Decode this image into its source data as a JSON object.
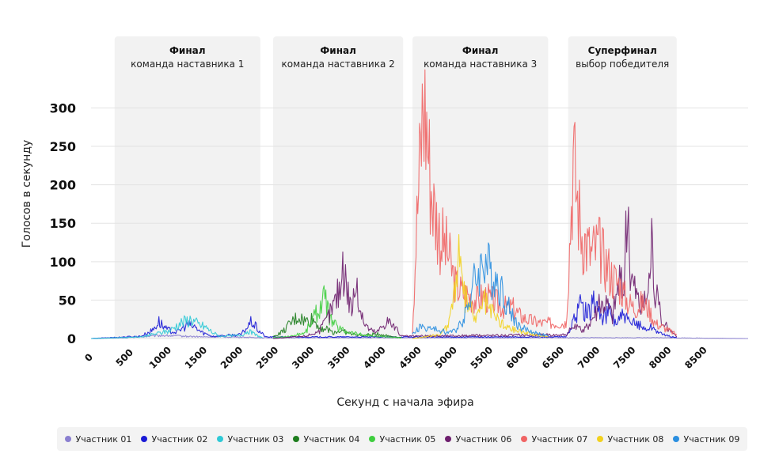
{
  "chart_data": {
    "type": "line",
    "xlabel": "Секунд с начала эфира",
    "ylabel": "Голосов в секунду",
    "xlim": [
      0,
      9200
    ],
    "ylim": [
      0,
      320
    ],
    "x_ticks": [
      0,
      500,
      1000,
      1500,
      2000,
      2500,
      3000,
      3500,
      4000,
      4500,
      5000,
      5500,
      6000,
      6500,
      7000,
      7500,
      8000,
      8500
    ],
    "y_ticks": [
      0,
      50,
      100,
      150,
      200,
      250,
      300
    ],
    "grid": true,
    "legend_position": "bottom",
    "segments": [
      {
        "title": "Финал",
        "subtitle": "команда наставника 1",
        "x_start": 330,
        "x_end": 2370
      },
      {
        "title": "Финал",
        "subtitle": "команда наставника 2",
        "x_start": 2550,
        "x_end": 4370
      },
      {
        "title": "Финал",
        "subtitle": "команда наставника 3",
        "x_start": 4500,
        "x_end": 6400
      },
      {
        "title": "Суперфинал",
        "subtitle": "выбор победителя",
        "x_start": 6680,
        "x_end": 8200
      }
    ],
    "series": [
      {
        "name": "Участник 01",
        "color": "#8a7fd0",
        "x": [
          0,
          500,
          800,
          1000,
          1300,
          1600,
          2000,
          2400,
          8000,
          9200
        ],
        "y": [
          0,
          1,
          3,
          4,
          3,
          2,
          2,
          1,
          1,
          0
        ]
      },
      {
        "name": "Участник 02",
        "color": "#1a1ad6",
        "x": [
          0,
          700,
          850,
          950,
          1050,
          1200,
          1350,
          1450,
          1550,
          1700,
          2100,
          2250,
          2350,
          2450,
          6650,
          6750,
          6850,
          6950,
          7050,
          7150,
          7250,
          7350,
          7450,
          7550,
          7650,
          7750,
          7850,
          8000,
          8200
        ],
        "y": [
          0,
          3,
          10,
          22,
          12,
          8,
          18,
          15,
          8,
          3,
          5,
          22,
          10,
          2,
          2,
          20,
          45,
          30,
          50,
          25,
          35,
          20,
          30,
          18,
          20,
          12,
          15,
          5,
          1
        ]
      },
      {
        "name": "Участник 03",
        "color": "#2ec9d6",
        "x": [
          0,
          700,
          900,
          1100,
          1250,
          1400,
          1500,
          1600,
          1700,
          1800,
          2100,
          2200,
          2300,
          2400
        ],
        "y": [
          0,
          2,
          6,
          10,
          20,
          25,
          18,
          15,
          8,
          3,
          4,
          10,
          5,
          1
        ]
      },
      {
        "name": "Участник 04",
        "color": "#1e7d1e",
        "x": [
          2550,
          2700,
          2800,
          2900,
          3000,
          3100,
          3200,
          3300,
          3400,
          3500,
          3650,
          3800,
          4000,
          4200,
          4350
        ],
        "y": [
          2,
          10,
          20,
          28,
          22,
          25,
          15,
          12,
          8,
          10,
          6,
          4,
          6,
          3,
          1
        ]
      },
      {
        "name": "Участник 05",
        "color": "#3fce3f",
        "x": [
          2550,
          2800,
          3000,
          3100,
          3200,
          3250,
          3300,
          3350,
          3450,
          3550,
          3650,
          3800,
          3950,
          4150,
          4350
        ],
        "y": [
          1,
          3,
          8,
          25,
          40,
          55,
          42,
          25,
          15,
          10,
          8,
          5,
          3,
          2,
          1
        ]
      },
      {
        "name": "Участник 06",
        "color": "#6e1f6e",
        "x": [
          2550,
          3000,
          3200,
          3300,
          3400,
          3500,
          3550,
          3600,
          3650,
          3700,
          3750,
          3800,
          3900,
          4000,
          4150,
          4250,
          4350,
          6650,
          6750,
          6900,
          7000,
          7100,
          7200,
          7300,
          7400,
          7450,
          7500,
          7550,
          7600,
          7700,
          7800,
          7850,
          7900,
          8000,
          8200
        ],
        "y": [
          0,
          3,
          10,
          25,
          45,
          75,
          92,
          60,
          40,
          70,
          50,
          25,
          12,
          8,
          25,
          15,
          3,
          5,
          15,
          10,
          25,
          40,
          50,
          30,
          80,
          60,
          160,
          90,
          70,
          40,
          60,
          130,
          60,
          20,
          2
        ]
      },
      {
        "name": "Участник 07",
        "color": "#f06464",
        "x": [
          4500,
          4550,
          4600,
          4650,
          4700,
          4750,
          4800,
          4850,
          4900,
          5000,
          5100,
          5200,
          5300,
          5400,
          5500,
          5600,
          5700,
          5800,
          5900,
          6000,
          6100,
          6200,
          6300,
          6400,
          6650,
          6700,
          6750,
          6800,
          6850,
          6900,
          7000,
          7100,
          7200,
          7300,
          7400,
          7500,
          7600,
          7700,
          7800,
          7900,
          8000,
          8100,
          8200
        ],
        "y": [
          10,
          130,
          220,
          310,
          280,
          210,
          170,
          150,
          130,
          110,
          70,
          60,
          55,
          50,
          55,
          50,
          45,
          40,
          40,
          30,
          25,
          22,
          20,
          20,
          20,
          120,
          235,
          190,
          150,
          130,
          110,
          120,
          100,
          80,
          70,
          50,
          40,
          45,
          40,
          20,
          15,
          10,
          5
        ]
      },
      {
        "name": "Участник 08",
        "color": "#f2d11e",
        "x": [
          4500,
          4900,
          5000,
          5050,
          5100,
          5150,
          5200,
          5300,
          5400,
          5500,
          5600,
          5700,
          5800,
          6000,
          6200,
          6400
        ],
        "y": [
          0,
          5,
          20,
          40,
          70,
          110,
          60,
          40,
          25,
          50,
          35,
          25,
          15,
          10,
          5,
          2
        ]
      },
      {
        "name": "Участник 09",
        "color": "#2b8fe0",
        "x": [
          4500,
          4600,
          4800,
          5000,
          5100,
          5200,
          5300,
          5350,
          5450,
          5500,
          5600,
          5700,
          5800,
          5900,
          6000,
          6200,
          6400
        ],
        "y": [
          5,
          15,
          12,
          8,
          10,
          25,
          50,
          70,
          90,
          105,
          85,
          75,
          50,
          30,
          15,
          8,
          3
        ]
      }
    ]
  }
}
